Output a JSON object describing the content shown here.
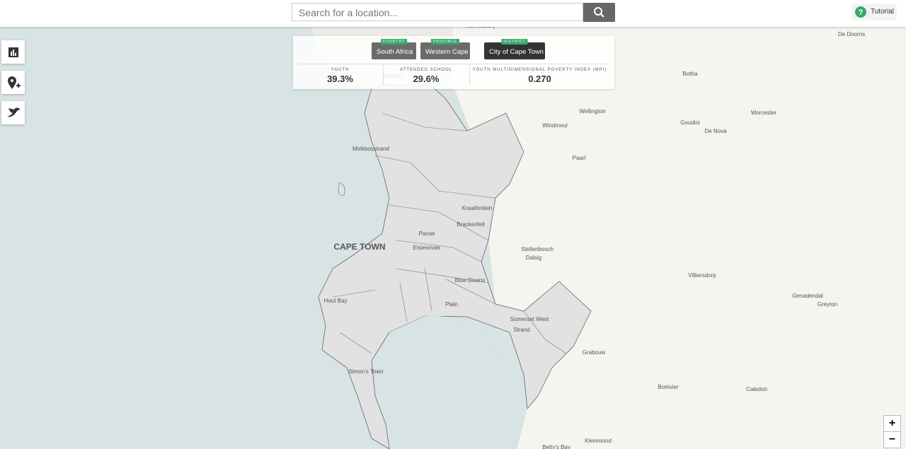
{
  "search": {
    "placeholder": "Search for a location..."
  },
  "tutorial": "Tutorial",
  "breadcrumbs": [
    {
      "level": "COUNTRY",
      "name": "South Africa"
    },
    {
      "level": "PROVINCE",
      "name": "Western Cape"
    },
    {
      "level": "DISTRICT",
      "name": "City of Cape Town"
    }
  ],
  "stats": [
    {
      "label": "YOUTH",
      "value": "39.3%"
    },
    {
      "label": "ATTENDED SCHOOL",
      "value": "29.6%"
    },
    {
      "label": "YOUTH MULTIDIMENSIONAL POVERTY INDEX (MPI)",
      "value": "0.270"
    }
  ],
  "places": [
    "Malmesbury",
    "De Doorns",
    "Atlantis",
    "Botha",
    "Wellington",
    "Windmeul",
    "Worcester",
    "Goudini",
    "De Nova",
    "Melkbosstrand",
    "Paarl",
    "Kraaifontein",
    "Brackenfell",
    "Parow",
    "CAPE TOWN",
    "Elsiesrivier",
    "Stellenbosch",
    "Dalsig",
    "Villiersdorp",
    "Blue Downs",
    "Hout Bay",
    "Plain",
    "Genadendal",
    "Greyton",
    "Somerset West",
    "Strand",
    "Grabouw",
    "Simon's Town",
    "Botrivier",
    "Caledon",
    "Kleinmond",
    "Betty's Bay"
  ]
}
